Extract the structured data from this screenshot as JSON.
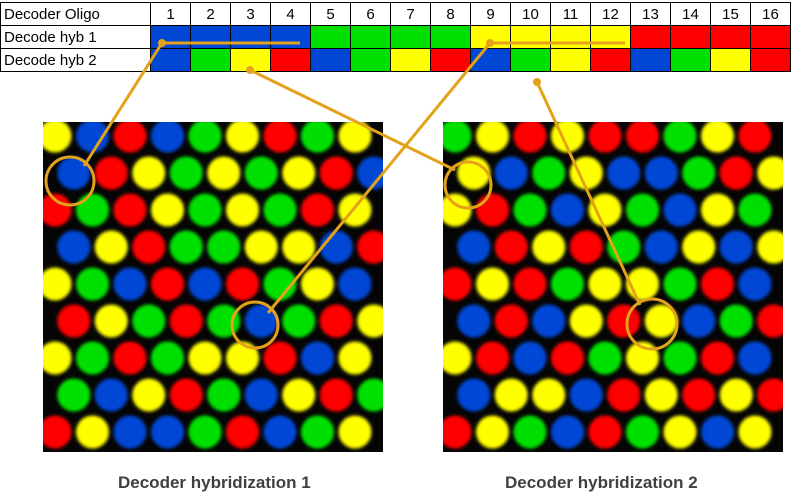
{
  "table": {
    "header_label": "Decoder Oligo",
    "oligo_numbers": [
      "1",
      "2",
      "3",
      "4",
      "5",
      "6",
      "7",
      "8",
      "9",
      "10",
      "11",
      "12",
      "13",
      "14",
      "15",
      "16"
    ],
    "rows": [
      {
        "label": "Decode hyb 1",
        "colors": [
          "blue",
          "blue",
          "blue",
          "blue",
          "green",
          "green",
          "green",
          "green",
          "yellow",
          "yellow",
          "yellow",
          "yellow",
          "red",
          "red",
          "red",
          "red"
        ]
      },
      {
        "label": "Decode hyb 2",
        "colors": [
          "blue",
          "green",
          "yellow",
          "red",
          "blue",
          "green",
          "yellow",
          "red",
          "blue",
          "green",
          "yellow",
          "red",
          "blue",
          "green",
          "yellow",
          "red"
        ]
      }
    ]
  },
  "palette": {
    "blue": "#0047d6",
    "green": "#00e000",
    "yellow": "#ffff00",
    "red": "#ff0000",
    "connector": "#e3a21a",
    "background": "#050505"
  },
  "panels": [
    {
      "caption": "Decoder hybridization 1",
      "beads": [
        [
          "yellow",
          "blue",
          "red",
          "blue",
          "green",
          "yellow",
          "red",
          "green",
          "yellow"
        ],
        [
          "blue",
          "red",
          "yellow",
          "green",
          "yellow",
          "green",
          "yellow",
          "red",
          "blue"
        ],
        [
          "red",
          "green",
          "red",
          "yellow",
          "green",
          "yellow",
          "green",
          "red",
          "yellow"
        ],
        [
          "blue",
          "yellow",
          "red",
          "green",
          "green",
          "yellow",
          "yellow",
          "blue",
          "red"
        ],
        [
          "yellow",
          "green",
          "blue",
          "red",
          "blue",
          "red",
          "green",
          "yellow",
          "blue"
        ],
        [
          "red",
          "yellow",
          "green",
          "red",
          "green",
          "blue",
          "green",
          "red",
          "yellow"
        ],
        [
          "yellow",
          "green",
          "red",
          "green",
          "yellow",
          "yellow",
          "red",
          "blue",
          "yellow"
        ],
        [
          "green",
          "blue",
          "yellow",
          "red",
          "green",
          "blue",
          "yellow",
          "red",
          "green"
        ],
        [
          "red",
          "yellow",
          "blue",
          "blue",
          "green",
          "red",
          "blue",
          "green",
          "yellow"
        ]
      ]
    },
    {
      "caption": "Decoder hybridization 2",
      "beads": [
        [
          "green",
          "yellow",
          "red",
          "yellow",
          "red",
          "red",
          "green",
          "yellow",
          "red"
        ],
        [
          "yellow",
          "blue",
          "green",
          "yellow",
          "blue",
          "blue",
          "green",
          "red",
          "yellow"
        ],
        [
          "yellow",
          "red",
          "green",
          "blue",
          "yellow",
          "green",
          "blue",
          "yellow",
          "green"
        ],
        [
          "blue",
          "red",
          "yellow",
          "red",
          "green",
          "blue",
          "yellow",
          "blue",
          "yellow"
        ],
        [
          "red",
          "yellow",
          "red",
          "green",
          "yellow",
          "yellow",
          "green",
          "red",
          "blue"
        ],
        [
          "blue",
          "red",
          "blue",
          "yellow",
          "red",
          "yellow",
          "blue",
          "green",
          "red"
        ],
        [
          "yellow",
          "red",
          "blue",
          "red",
          "green",
          "yellow",
          "green",
          "red",
          "blue"
        ],
        [
          "blue",
          "yellow",
          "yellow",
          "blue",
          "red",
          "yellow",
          "red",
          "yellow",
          "red"
        ],
        [
          "red",
          "yellow",
          "green",
          "blue",
          "red",
          "green",
          "yellow",
          "blue",
          "yellow"
        ]
      ]
    }
  ]
}
